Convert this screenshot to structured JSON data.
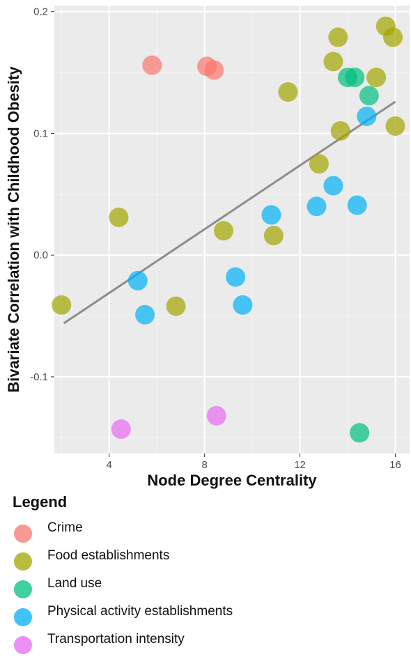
{
  "chart_data": {
    "type": "scatter",
    "xlabel": "Node Degree Centrality",
    "ylabel": "Bivariate Correlation with Childhood Obesity",
    "xlim": [
      1.7,
      16.6
    ],
    "ylim": [
      -0.163,
      0.205
    ],
    "xticks": [
      4,
      8,
      12,
      16
    ],
    "xtick_labels": [
      "4",
      "8",
      "12",
      "16"
    ],
    "yticks": [
      -0.1,
      0.0,
      0.1,
      0.2
    ],
    "ytick_labels": [
      "-0.1",
      "0.0",
      "0.1",
      "0.2"
    ],
    "grid": true,
    "legend_position": "bottom",
    "legend_title": "Legend",
    "series": [
      {
        "name": "Crime",
        "color": "#F8766D",
        "points": [
          [
            5.8,
            0.156
          ],
          [
            8.1,
            0.155
          ],
          [
            8.4,
            0.152
          ]
        ]
      },
      {
        "name": "Food establishments",
        "color": "#A3A500",
        "points": [
          [
            2.0,
            -0.041
          ],
          [
            4.4,
            0.031
          ],
          [
            6.8,
            -0.042
          ],
          [
            8.8,
            0.02
          ],
          [
            10.9,
            0.016
          ],
          [
            11.5,
            0.134
          ],
          [
            12.8,
            0.075
          ],
          [
            13.4,
            0.159
          ],
          [
            13.6,
            0.179
          ],
          [
            13.7,
            0.102
          ],
          [
            15.2,
            0.146
          ],
          [
            15.6,
            0.188
          ],
          [
            15.9,
            0.179
          ],
          [
            16.0,
            0.106
          ]
        ]
      },
      {
        "name": "Land use",
        "color": "#00BF7D",
        "points": [
          [
            14.0,
            0.146
          ],
          [
            14.3,
            0.146
          ],
          [
            14.9,
            0.131
          ],
          [
            14.5,
            -0.146
          ]
        ]
      },
      {
        "name": "Physical activity establishments",
        "color": "#00B0F6",
        "points": [
          [
            5.2,
            -0.021
          ],
          [
            5.5,
            -0.049
          ],
          [
            9.3,
            -0.018
          ],
          [
            9.6,
            -0.041
          ],
          [
            10.8,
            0.033
          ],
          [
            12.7,
            0.04
          ],
          [
            13.4,
            0.057
          ],
          [
            14.4,
            0.041
          ],
          [
            14.8,
            0.114
          ]
        ]
      },
      {
        "name": "Transportation intensity",
        "color": "#E76BF3",
        "points": [
          [
            4.5,
            -0.143
          ],
          [
            8.5,
            -0.132
          ]
        ]
      }
    ],
    "trendline": {
      "x": [
        2.1,
        16.0
      ],
      "y": [
        -0.056,
        0.126
      ],
      "color": "#8c8c8c"
    }
  }
}
